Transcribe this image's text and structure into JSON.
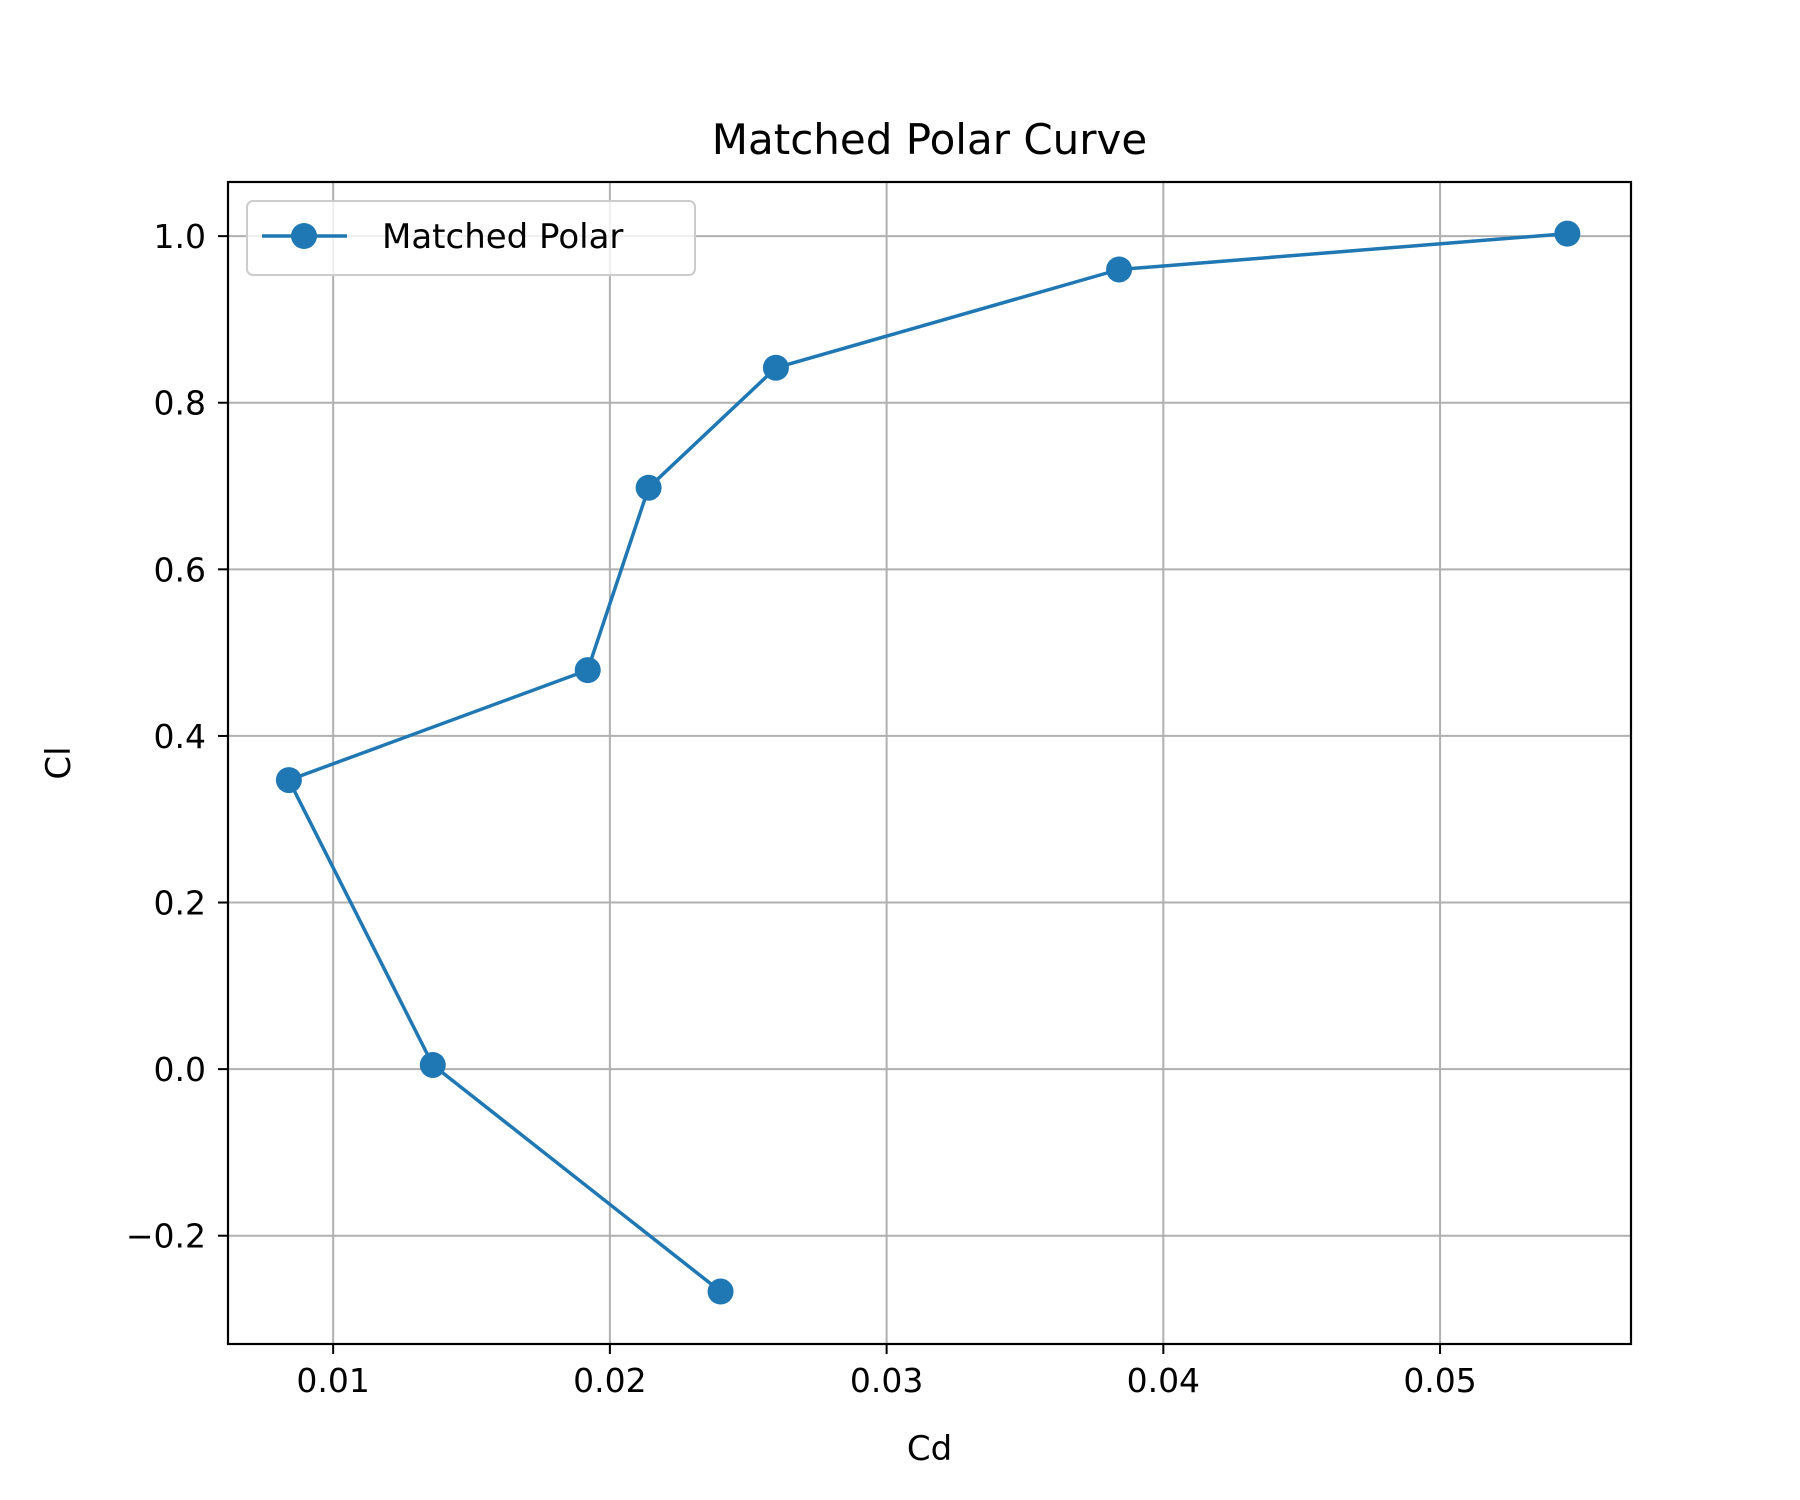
{
  "chart_data": {
    "type": "line",
    "title": "Matched Polar Curve",
    "xlabel": "Cd",
    "ylabel": "Cl",
    "xlim": [
      0.0062,
      0.0569
    ],
    "ylim": [
      -0.33,
      1.065
    ],
    "xticks": [
      0.01,
      0.02,
      0.03,
      0.04,
      0.05
    ],
    "xtick_labels": [
      "0.01",
      "0.02",
      "0.03",
      "0.04",
      "0.05"
    ],
    "yticks": [
      -0.2,
      0.0,
      0.2,
      0.4,
      0.6,
      0.8,
      1.0
    ],
    "ytick_labels": [
      "−0.2",
      "0.0",
      "0.2",
      "0.4",
      "0.6",
      "0.8",
      "1.0"
    ],
    "grid": true,
    "legend_position": "top-left",
    "series": [
      {
        "name": "Matched Polar",
        "color": "#1f77b4",
        "marker": "circle",
        "x": [
          0.024,
          0.0136,
          0.0084,
          0.0192,
          0.0214,
          0.026,
          0.0384,
          0.0546
        ],
        "y": [
          -0.267,
          0.005,
          0.347,
          0.479,
          0.698,
          0.842,
          0.96,
          1.003
        ]
      }
    ]
  }
}
